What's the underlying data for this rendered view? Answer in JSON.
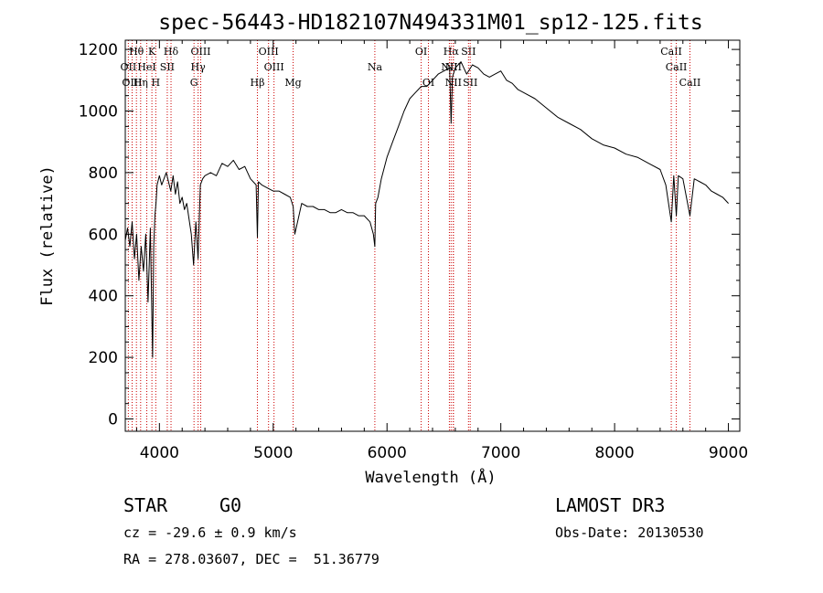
{
  "chart_data": {
    "type": "line",
    "title": "spec-56443-HD182107N494331M01_sp12-125.fits",
    "xlabel": "Wavelength (Å)",
    "ylabel": "Flux (relative)",
    "xlim": [
      3700,
      9100
    ],
    "ylim": [
      -40,
      1230
    ],
    "x_ticks": [
      4000,
      5000,
      6000,
      7000,
      8000,
      9000
    ],
    "y_ticks": [
      0,
      200,
      400,
      600,
      800,
      1000,
      1200
    ],
    "grid": false,
    "series": [
      {
        "color": "#000000",
        "x": [
          3700,
          3720,
          3740,
          3760,
          3780,
          3800,
          3820,
          3840,
          3860,
          3880,
          3900,
          3920,
          3940,
          3950,
          3960,
          3970,
          3980,
          4000,
          4020,
          4040,
          4060,
          4080,
          4100,
          4120,
          4140,
          4160,
          4180,
          4200,
          4220,
          4240,
          4260,
          4280,
          4300,
          4320,
          4340,
          4360,
          4380,
          4400,
          4450,
          4500,
          4550,
          4600,
          4650,
          4700,
          4750,
          4800,
          4850,
          4861,
          4870,
          4900,
          4950,
          5000,
          5050,
          5100,
          5150,
          5175,
          5190,
          5250,
          5300,
          5350,
          5400,
          5450,
          5500,
          5550,
          5600,
          5650,
          5700,
          5750,
          5800,
          5850,
          5880,
          5893,
          5900,
          5920,
          5950,
          6000,
          6050,
          6100,
          6150,
          6200,
          6250,
          6300,
          6350,
          6400,
          6450,
          6500,
          6550,
          6563,
          6575,
          6600,
          6650,
          6700,
          6750,
          6800,
          6850,
          6900,
          6950,
          7000,
          7050,
          7100,
          7150,
          7200,
          7300,
          7400,
          7500,
          7600,
          7700,
          7800,
          7900,
          8000,
          8100,
          8200,
          8300,
          8400,
          8450,
          8498,
          8520,
          8542,
          8560,
          8600,
          8662,
          8700,
          8750,
          8800,
          8850,
          8900,
          8950,
          9000
        ],
        "y": [
          580,
          620,
          560,
          640,
          520,
          600,
          450,
          560,
          480,
          600,
          380,
          620,
          200,
          560,
          660,
          700,
          760,
          790,
          760,
          780,
          800,
          770,
          740,
          790,
          730,
          770,
          700,
          720,
          680,
          700,
          650,
          600,
          500,
          640,
          520,
          760,
          780,
          790,
          800,
          790,
          830,
          820,
          840,
          810,
          820,
          780,
          760,
          590,
          770,
          760,
          750,
          740,
          740,
          730,
          720,
          690,
          600,
          700,
          690,
          690,
          680,
          680,
          670,
          670,
          680,
          670,
          670,
          660,
          660,
          640,
          600,
          560,
          700,
          720,
          780,
          850,
          900,
          950,
          1000,
          1040,
          1060,
          1080,
          1080,
          1100,
          1120,
          1130,
          1140,
          960,
          1110,
          1140,
          1160,
          1120,
          1150,
          1140,
          1120,
          1110,
          1120,
          1130,
          1100,
          1090,
          1070,
          1060,
          1040,
          1010,
          980,
          960,
          940,
          910,
          890,
          880,
          860,
          850,
          830,
          810,
          760,
          640,
          790,
          660,
          790,
          780,
          660,
          780,
          770,
          760,
          740,
          730,
          720,
          700
        ]
      }
    ],
    "line_markers": [
      {
        "label": "Hθ",
        "x": 3798,
        "row": 0
      },
      {
        "label": "K",
        "x": 3934,
        "row": 0
      },
      {
        "label": "Hδ",
        "x": 4102,
        "row": 0
      },
      {
        "label": "OIII",
        "x": 4363,
        "row": 0
      },
      {
        "label": "OIII",
        "x": 4959,
        "row": 0
      },
      {
        "label": "OI",
        "x": 6300,
        "row": 0
      },
      {
        "label": "Hα",
        "x": 6563,
        "row": 0
      },
      {
        "label": "SII",
        "x": 6716,
        "row": 0
      },
      {
        "label": "CaII",
        "x": 8498,
        "row": 0
      },
      {
        "label": "OII",
        "x": 3727,
        "row": 1
      },
      {
        "label": "HeI",
        "x": 3889,
        "row": 1
      },
      {
        "label": "SII",
        "x": 4069,
        "row": 1
      },
      {
        "label": "Hγ",
        "x": 4340,
        "row": 1
      },
      {
        "label": "OIII",
        "x": 5007,
        "row": 1
      },
      {
        "label": "Na",
        "x": 5893,
        "row": 1
      },
      {
        "label": "NII",
        "x": 6548,
        "row": 1
      },
      {
        "label": "NII",
        "x": 6583,
        "row": 1
      },
      {
        "label": "CaII",
        "x": 8542,
        "row": 1
      },
      {
        "label": "OIII",
        "x": 3760,
        "row": 2
      },
      {
        "label": "Hη",
        "x": 3835,
        "row": 2
      },
      {
        "label": "H",
        "x": 3968,
        "row": 2
      },
      {
        "label": "G",
        "x": 4304,
        "row": 2
      },
      {
        "label": "Hβ",
        "x": 4861,
        "row": 2
      },
      {
        "label": "Mg",
        "x": 5175,
        "row": 2
      },
      {
        "label": "OI",
        "x": 6364,
        "row": 2
      },
      {
        "label": "NII",
        "x": 6583,
        "row": 2
      },
      {
        "label": "SII",
        "x": 6731,
        "row": 2
      },
      {
        "label": "CaII",
        "x": 8662,
        "row": 2
      }
    ],
    "marker_color": "#cc0000"
  },
  "info": {
    "object_class": "STAR",
    "subclass": "G0",
    "redshift": "cz = -29.6 ± 0.9 km/s",
    "coords": "RA = 278.03607, DEC =  51.36779",
    "survey": "LAMOST DR3",
    "obs_date": "Obs-Date: 20130530"
  }
}
